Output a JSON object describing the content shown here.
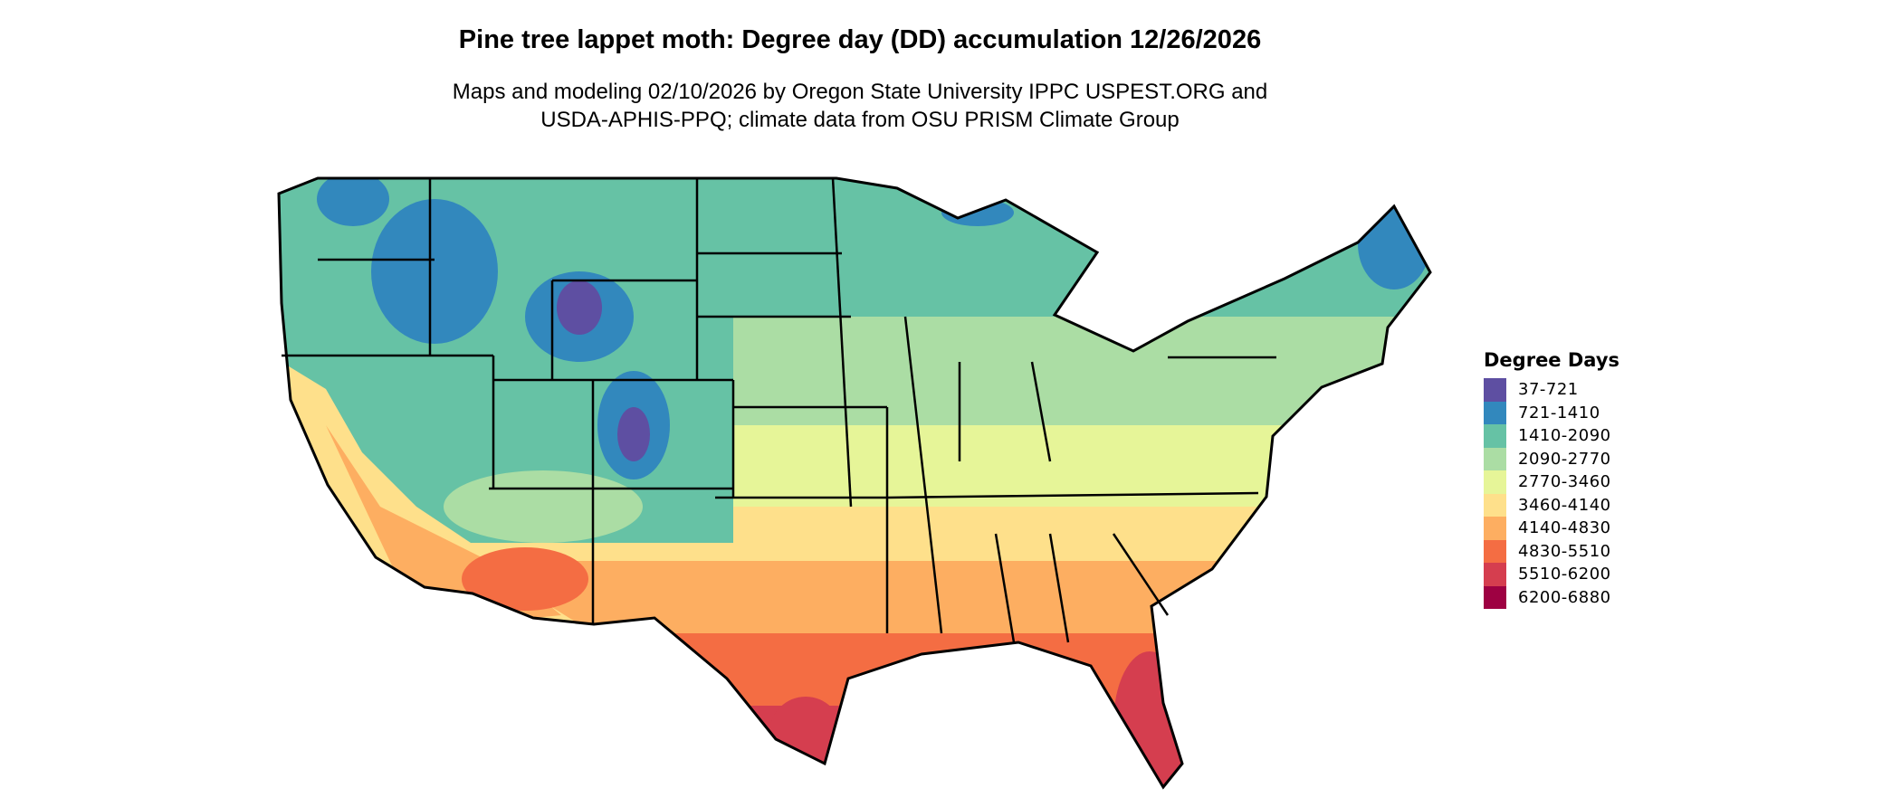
{
  "title": "Pine tree lappet moth: Degree day (DD) accumulation 12/26/2026",
  "subtitle_line1": "Maps and modeling 02/10/2026 by Oregon State University IPPC USPEST.ORG and",
  "subtitle_line2": "USDA-APHIS-PPQ; climate data from OSU PRISM Climate Group",
  "legend": {
    "title": "Degree Days",
    "items": [
      {
        "label": "37-721",
        "color": "#5e4fa2"
      },
      {
        "label": "721-1410",
        "color": "#3288bd"
      },
      {
        "label": "1410-2090",
        "color": "#66c2a5"
      },
      {
        "label": "2090-2770",
        "color": "#abdda4"
      },
      {
        "label": "2770-3460",
        "color": "#e6f598"
      },
      {
        "label": "3460-4140",
        "color": "#fee08b"
      },
      {
        "label": "4140-4830",
        "color": "#fdae61"
      },
      {
        "label": "4830-5510",
        "color": "#f46d43"
      },
      {
        "label": "5510-6200",
        "color": "#d53e4f"
      },
      {
        "label": "6200-6880",
        "color": "#9e0142"
      }
    ]
  }
}
